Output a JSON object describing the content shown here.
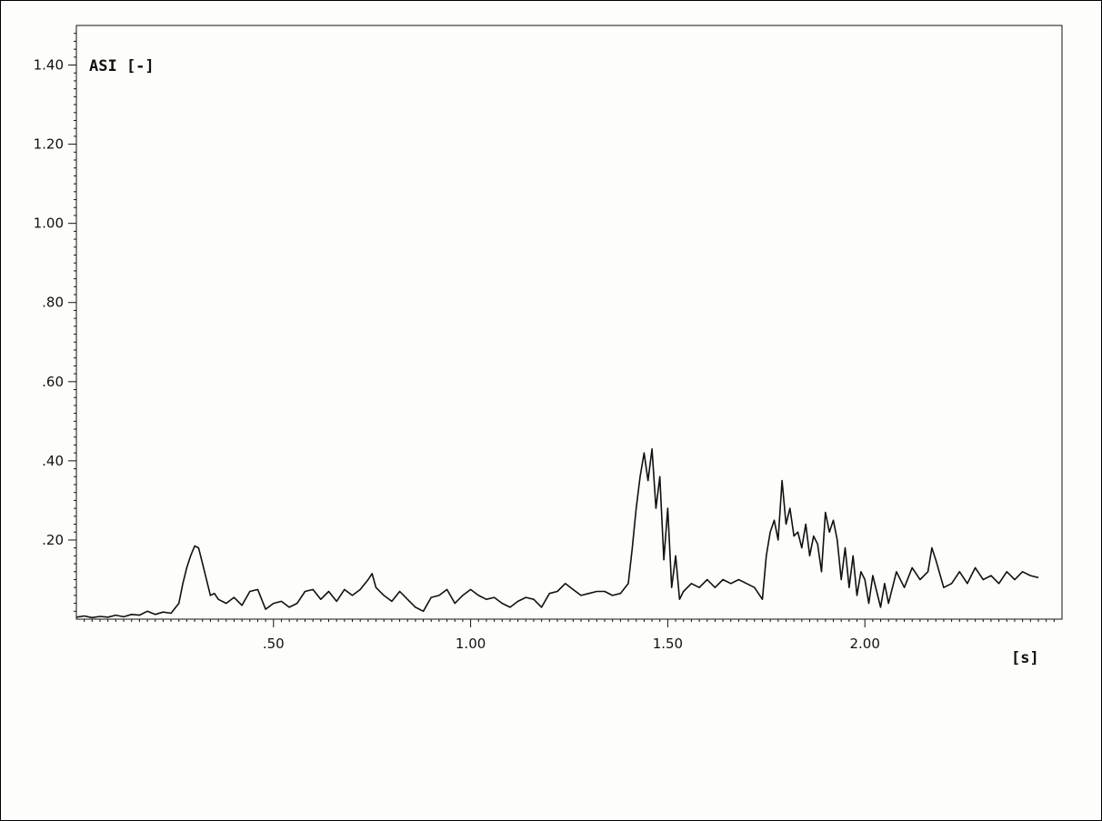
{
  "chart_data": {
    "type": "line",
    "title": "",
    "xlabel": "[s]",
    "ylabel": "ASI [-]",
    "xlim": [
      0.0,
      2.5
    ],
    "ylim": [
      0.0,
      1.5
    ],
    "x_ticks": [
      0.5,
      1.0,
      1.5,
      2.0
    ],
    "x_tick_labels": [
      ".50",
      "1.00",
      "1.50",
      "2.00"
    ],
    "y_ticks": [
      0.2,
      0.4,
      0.6,
      0.8,
      1.0,
      1.2,
      1.4
    ],
    "y_tick_labels": [
      ".20",
      ".40",
      ".60",
      ".80",
      "1.00",
      "1.20",
      "1.40"
    ],
    "grid": false,
    "legend": "none",
    "series": [
      {
        "color": "#111111",
        "x": [
          0.0,
          0.02,
          0.04,
          0.06,
          0.08,
          0.1,
          0.12,
          0.14,
          0.16,
          0.18,
          0.2,
          0.22,
          0.24,
          0.26,
          0.27,
          0.28,
          0.29,
          0.3,
          0.31,
          0.32,
          0.33,
          0.34,
          0.35,
          0.36,
          0.38,
          0.4,
          0.42,
          0.44,
          0.46,
          0.48,
          0.5,
          0.52,
          0.54,
          0.56,
          0.58,
          0.6,
          0.62,
          0.64,
          0.66,
          0.68,
          0.7,
          0.72,
          0.74,
          0.75,
          0.76,
          0.78,
          0.8,
          0.82,
          0.84,
          0.86,
          0.88,
          0.9,
          0.92,
          0.94,
          0.96,
          0.98,
          1.0,
          1.02,
          1.04,
          1.06,
          1.08,
          1.1,
          1.12,
          1.14,
          1.16,
          1.18,
          1.2,
          1.22,
          1.24,
          1.26,
          1.28,
          1.3,
          1.32,
          1.34,
          1.36,
          1.38,
          1.4,
          1.41,
          1.42,
          1.43,
          1.44,
          1.45,
          1.46,
          1.47,
          1.48,
          1.49,
          1.5,
          1.51,
          1.52,
          1.53,
          1.54,
          1.56,
          1.58,
          1.6,
          1.62,
          1.64,
          1.66,
          1.68,
          1.7,
          1.72,
          1.74,
          1.75,
          1.76,
          1.77,
          1.78,
          1.79,
          1.8,
          1.81,
          1.82,
          1.83,
          1.84,
          1.85,
          1.86,
          1.87,
          1.88,
          1.89,
          1.9,
          1.91,
          1.92,
          1.93,
          1.94,
          1.95,
          1.96,
          1.97,
          1.98,
          1.99,
          2.0,
          2.01,
          2.02,
          2.03,
          2.04,
          2.05,
          2.06,
          2.08,
          2.1,
          2.12,
          2.14,
          2.16,
          2.17,
          2.18,
          2.2,
          2.22,
          2.24,
          2.26,
          2.28,
          2.3,
          2.32,
          2.34,
          2.36,
          2.38,
          2.4,
          2.42,
          2.44
        ],
        "y": [
          0.005,
          0.008,
          0.004,
          0.007,
          0.005,
          0.01,
          0.006,
          0.012,
          0.01,
          0.02,
          0.012,
          0.018,
          0.015,
          0.04,
          0.09,
          0.13,
          0.16,
          0.185,
          0.18,
          0.14,
          0.1,
          0.06,
          0.065,
          0.05,
          0.04,
          0.055,
          0.035,
          0.07,
          0.075,
          0.025,
          0.04,
          0.045,
          0.03,
          0.04,
          0.07,
          0.075,
          0.05,
          0.07,
          0.045,
          0.075,
          0.06,
          0.075,
          0.1,
          0.115,
          0.08,
          0.06,
          0.045,
          0.07,
          0.05,
          0.03,
          0.02,
          0.055,
          0.06,
          0.075,
          0.04,
          0.06,
          0.075,
          0.06,
          0.05,
          0.055,
          0.04,
          0.03,
          0.045,
          0.055,
          0.05,
          0.03,
          0.065,
          0.07,
          0.09,
          0.075,
          0.06,
          0.065,
          0.07,
          0.07,
          0.06,
          0.065,
          0.09,
          0.18,
          0.28,
          0.36,
          0.42,
          0.35,
          0.43,
          0.28,
          0.36,
          0.15,
          0.28,
          0.08,
          0.16,
          0.05,
          0.07,
          0.09,
          0.08,
          0.1,
          0.08,
          0.1,
          0.09,
          0.1,
          0.09,
          0.08,
          0.05,
          0.16,
          0.22,
          0.25,
          0.2,
          0.35,
          0.24,
          0.28,
          0.21,
          0.22,
          0.18,
          0.24,
          0.16,
          0.21,
          0.19,
          0.12,
          0.27,
          0.22,
          0.25,
          0.2,
          0.1,
          0.18,
          0.08,
          0.16,
          0.06,
          0.12,
          0.1,
          0.04,
          0.11,
          0.07,
          0.03,
          0.09,
          0.04,
          0.12,
          0.08,
          0.13,
          0.1,
          0.12,
          0.18,
          0.15,
          0.08,
          0.09,
          0.12,
          0.09,
          0.13,
          0.1,
          0.11,
          0.09,
          0.12,
          0.1,
          0.12,
          0.11,
          0.105
        ]
      }
    ]
  }
}
